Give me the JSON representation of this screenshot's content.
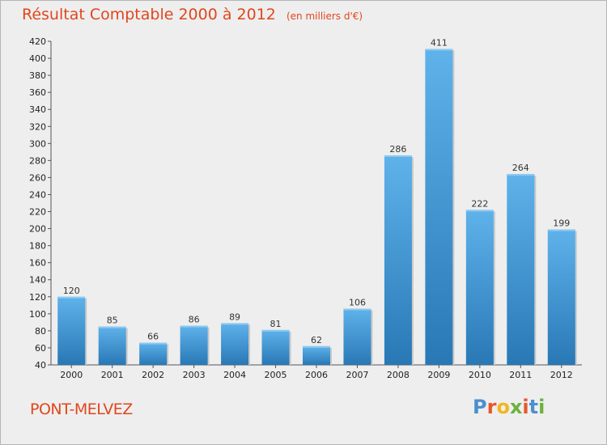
{
  "header": {
    "title": "Résultat Comptable 2000 à 2012",
    "unit": "(en milliers d'€)"
  },
  "footer": {
    "commune": "PONT-MELVEZ",
    "logo_text": "Proxiti",
    "logo_colors": [
      "#4a90d0",
      "#e8562a",
      "#f2b51e",
      "#6ab23e",
      "#e8562a",
      "#4a90d0",
      "#6ab23e"
    ]
  },
  "colors": {
    "title": "#e0471d",
    "bar_light": "#5aaee8",
    "bar_dark": "#2a7ab8",
    "background": "#eeeeee"
  },
  "chart_data": {
    "type": "bar",
    "title": "Résultat Comptable 2000 à 2012",
    "subtitle": "(en milliers d'€)",
    "xlabel": "",
    "ylabel": "",
    "categories": [
      "2000",
      "2001",
      "2002",
      "2003",
      "2004",
      "2005",
      "2006",
      "2007",
      "2008",
      "2009",
      "2010",
      "2011",
      "2012"
    ],
    "values": [
      120,
      85,
      66,
      86,
      89,
      81,
      62,
      106,
      286,
      411,
      222,
      264,
      199
    ],
    "ylim": [
      40,
      420
    ],
    "ytick_step": 20,
    "grid": false,
    "legend": "none"
  }
}
